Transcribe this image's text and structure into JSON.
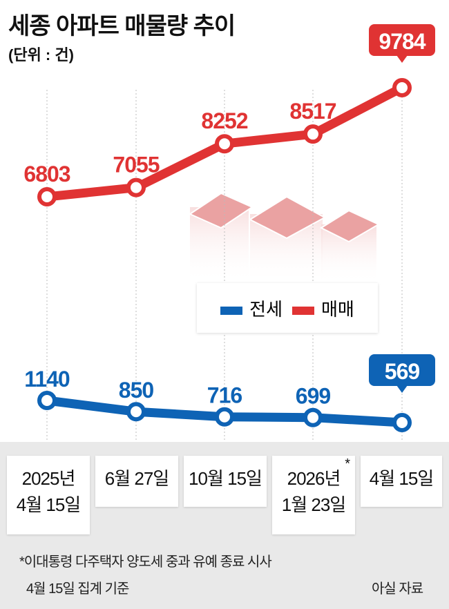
{
  "title": "세종 아파트 매물량 추이",
  "unit": "(단위 : 건)",
  "legend": {
    "jeonse": "전세",
    "sale": "매매"
  },
  "dates": [
    "2025년\n4월 15일",
    "6월 27일",
    "10월 15일",
    "2026년\n1월 23일",
    "4월 15일"
  ],
  "date_star": "*",
  "footnote1": "*이대통령 다주택자 양도세 중과 유예 종료 시사",
  "footnote2": "4월 15일 집계 기준",
  "source": "아실 자료",
  "colors": {
    "sale": "#e03333",
    "jeonse": "#0e63b5"
  },
  "chart_data": {
    "type": "line",
    "title": "세종 아파트 매물량 추이",
    "categories": [
      "2025년 4월 15일",
      "6월 27일",
      "10월 15일",
      "2026년 1월 23일",
      "4월 15일"
    ],
    "series": [
      {
        "name": "매매",
        "values": [
          6803,
          7055,
          8252,
          8517,
          9784
        ]
      },
      {
        "name": "전세",
        "values": [
          1140,
          850,
          716,
          699,
          569
        ]
      }
    ],
    "labels": {
      "sale": [
        "6803",
        "7055",
        "8252",
        "8517",
        "9784"
      ],
      "jeonse": [
        "1140",
        "850",
        "716",
        "699",
        "569"
      ]
    }
  }
}
